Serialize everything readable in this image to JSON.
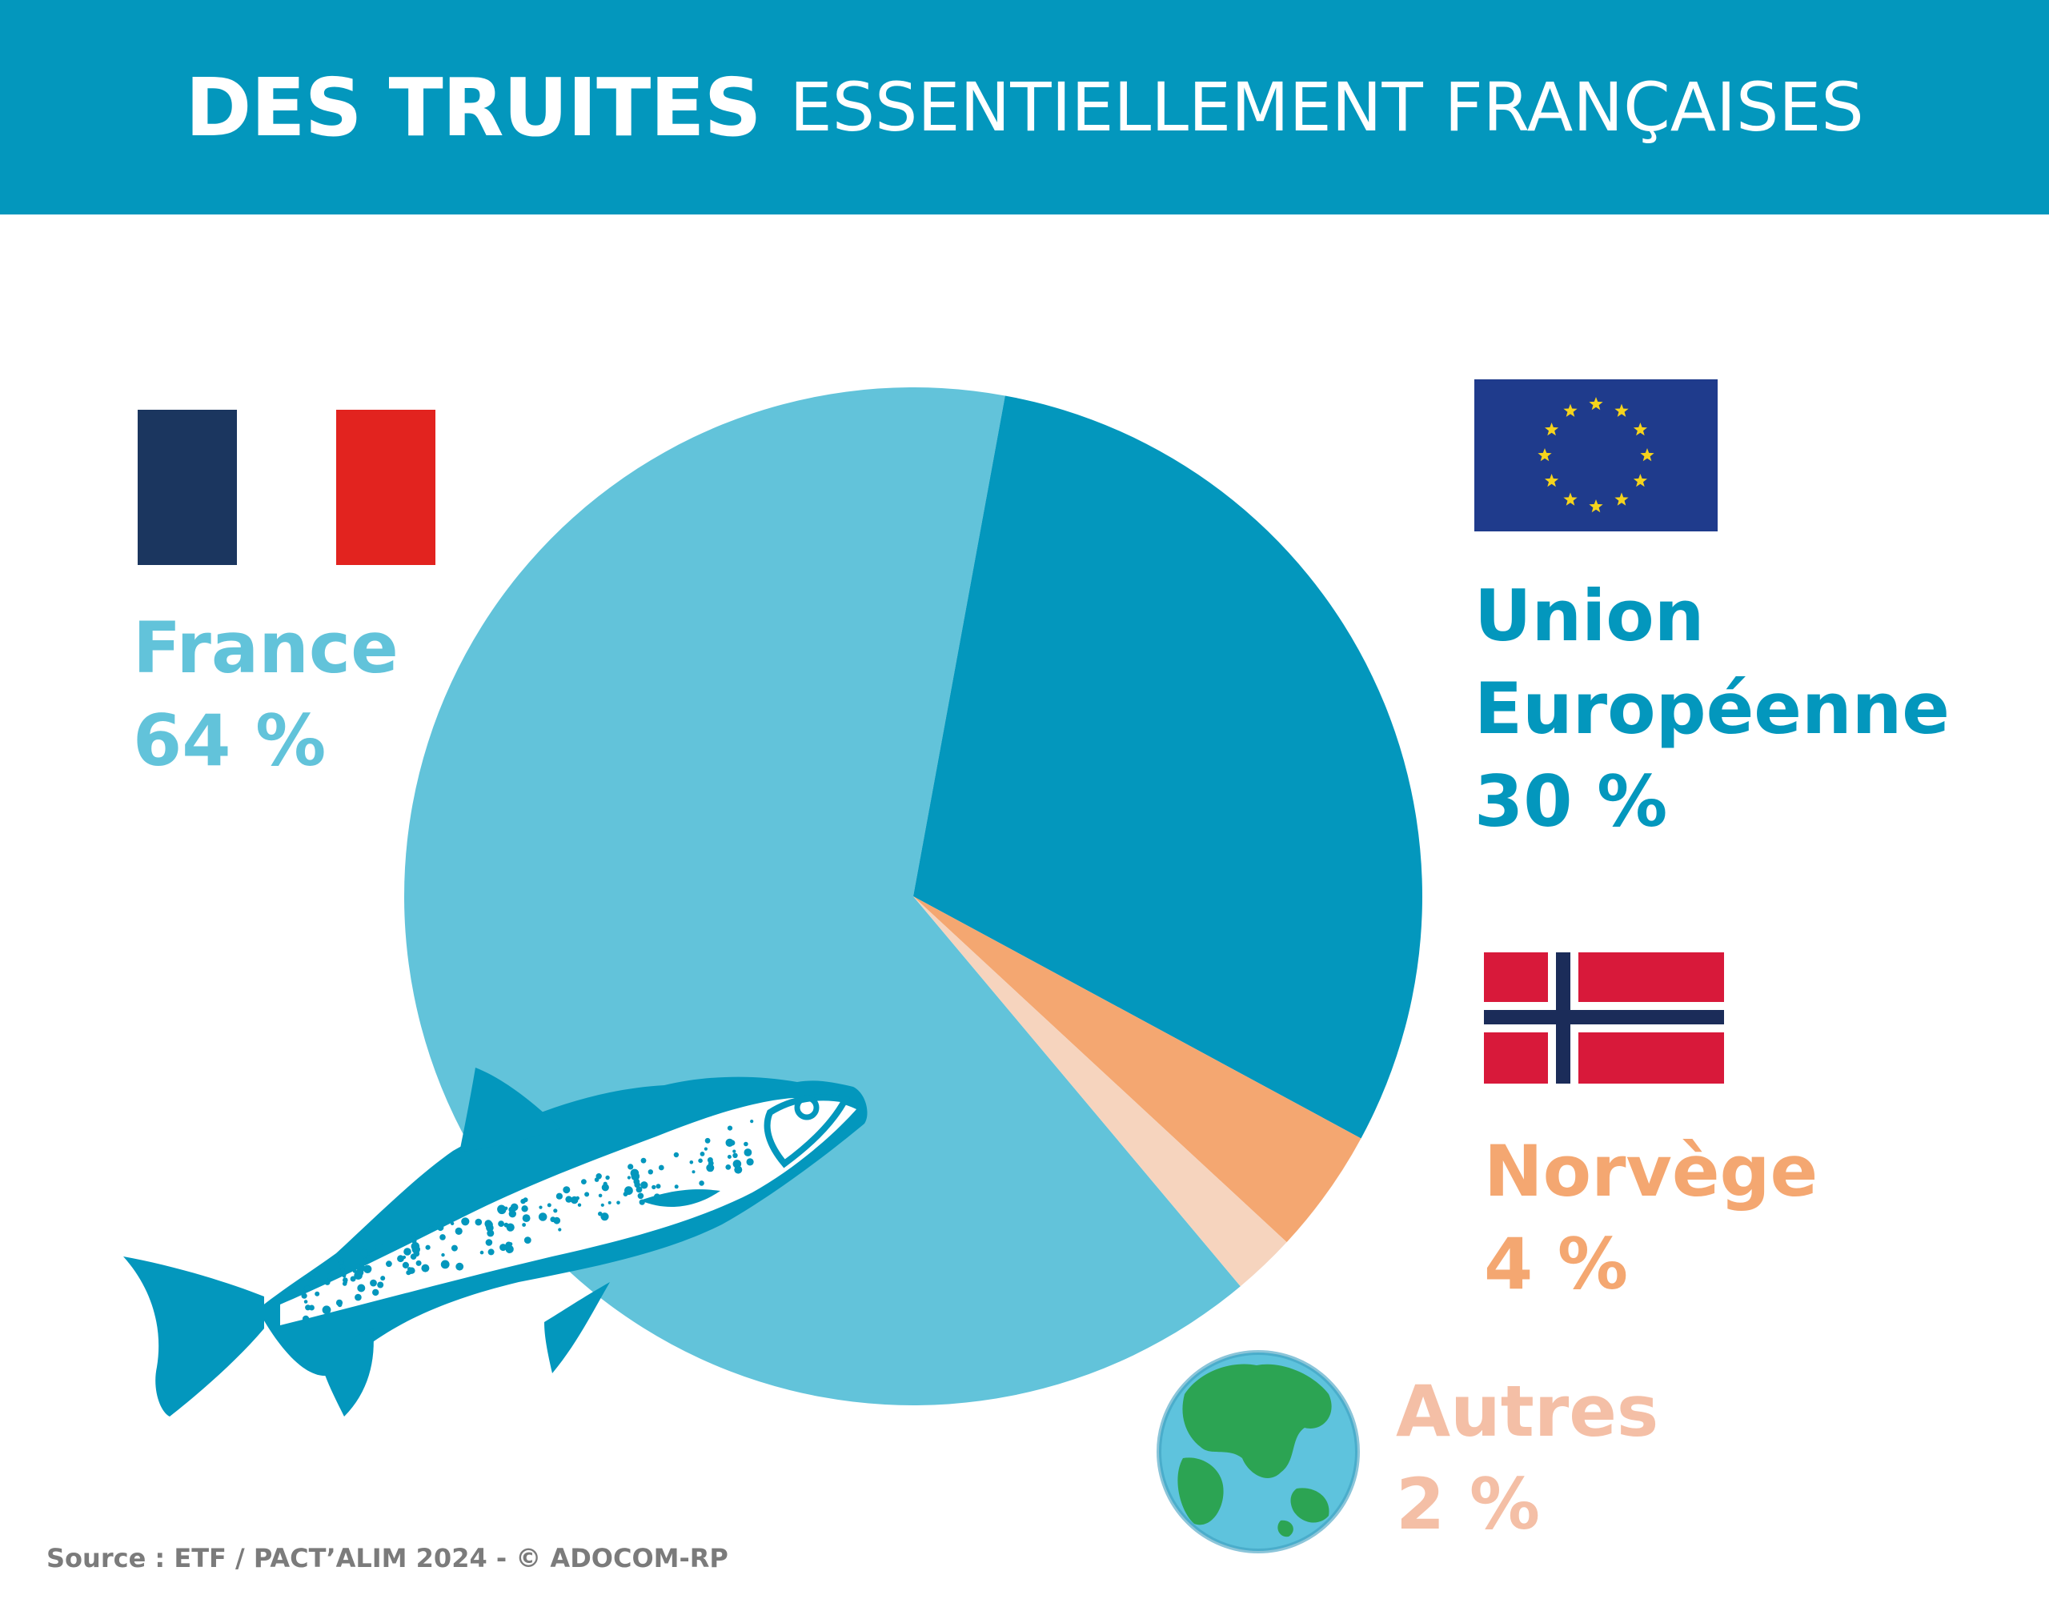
{
  "header": {
    "title_bold": "DES TRUITES",
    "title_rest": "ESSENTIELLEMENT FRANÇAISES"
  },
  "chart_data": {
    "type": "pie",
    "title": "DES TRUITES ESSENTIELLEMENT FRANÇAISES",
    "categories": [
      "France",
      "Union Européenne",
      "Norvège",
      "Autres"
    ],
    "values": [
      64,
      30,
      4,
      2
    ],
    "unit": "%",
    "colors": [
      "#62c3da",
      "#0397bd",
      "#f4a771",
      "#f6d4be"
    ],
    "labels": [
      {
        "name": "France",
        "value": "64 %",
        "color": "#62c3da"
      },
      {
        "name_line1": "Union",
        "name_line2": "Européenne",
        "value": "30 %",
        "color": "#0397bd"
      },
      {
        "name": "Norvège",
        "value": "4 %",
        "color": "#f4a771"
      },
      {
        "name": "Autres",
        "value": "2 %",
        "color": "#f4bfa6"
      }
    ]
  },
  "flags": {
    "france": {
      "icon": "france-flag-icon",
      "colors": [
        "#1b365f",
        "#ffffff",
        "#e2231f"
      ]
    },
    "eu": {
      "icon": "eu-flag-icon",
      "colors": [
        "#1f3b8c",
        "#f5d31c"
      ]
    },
    "norway": {
      "icon": "norway-flag-icon",
      "colors": [
        "#d8193a",
        "#ffffff",
        "#1b2c59"
      ]
    }
  },
  "icons": {
    "globe": "globe-icon",
    "fish": "trout-illustration-icon"
  },
  "footer": {
    "source": "Source : ETF / PACT’ALIM 2024 - © ADOCOM-RP"
  }
}
